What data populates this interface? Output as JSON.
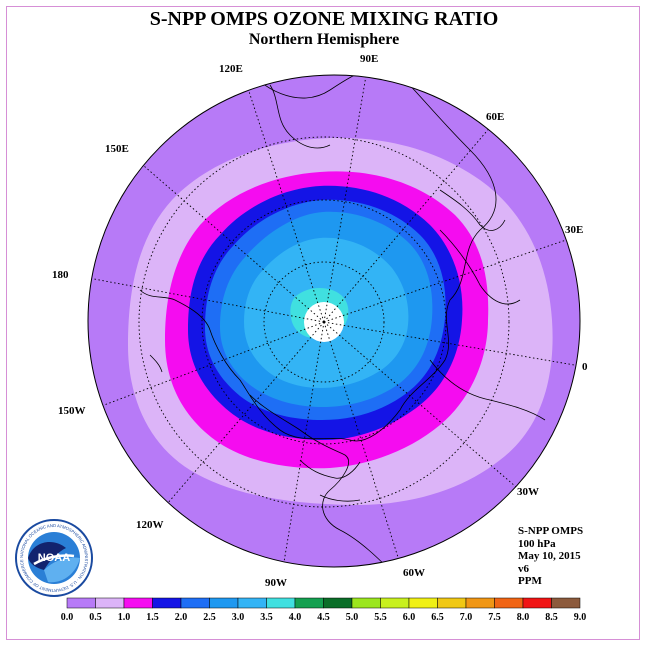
{
  "header": {
    "title": "S-NPP OMPS OZONE MIXING RATIO",
    "subtitle": "Northern Hemisphere"
  },
  "map": {
    "projection": "north-polar-stereographic",
    "longitude_labels": [
      "90E",
      "60E",
      "30E",
      "0",
      "30W",
      "60W",
      "90W",
      "120W",
      "150W",
      "180",
      "150E",
      "120E"
    ],
    "fill_colors": {
      "outer": "#b77af7",
      "band_0_5": "#dcb4f8",
      "band_1_0": "#f50cf0",
      "band_1_5": "#1414e6",
      "band_2_0": "#1e6ef5",
      "band_2_5": "#1e98f0",
      "band_3_0": "#33b4f5",
      "band_3_5": "#40e0e0",
      "pole_no_data": "#ffffff"
    }
  },
  "info": {
    "instrument": "S-NPP OMPS",
    "level": "100 hPa",
    "date": "May 10, 2015",
    "version": "v6",
    "units": "PPM"
  },
  "logo": {
    "text": "NOAA",
    "ring_text": "NATIONAL OCEANIC AND ATMOSPHERIC ADMINISTRATION · U.S. DEPARTMENT OF COMMERCE"
  },
  "colorbar": {
    "ticks": [
      "0.0",
      "0.5",
      "1.0",
      "1.5",
      "2.0",
      "2.5",
      "3.0",
      "3.5",
      "4.0",
      "4.5",
      "5.0",
      "5.5",
      "6.0",
      "6.5",
      "7.0",
      "7.5",
      "8.0",
      "8.5",
      "9.0"
    ],
    "colors": [
      "#b77af7",
      "#dcb4f8",
      "#f50cf0",
      "#1414e6",
      "#1e6ef5",
      "#1e98f0",
      "#33b4f5",
      "#40e0e0",
      "#14a050",
      "#0a6e28",
      "#9be61e",
      "#c8f01e",
      "#f0f014",
      "#f0c814",
      "#f09614",
      "#f06414",
      "#f01414",
      "#8c5a3c"
    ]
  }
}
